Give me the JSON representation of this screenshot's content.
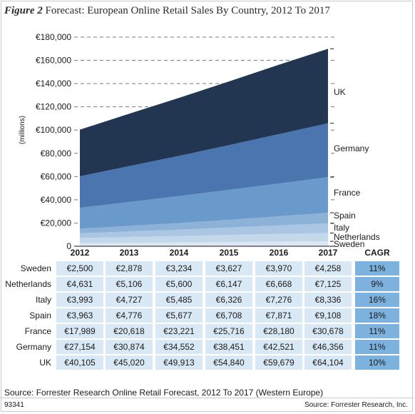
{
  "figure": {
    "label": "Figure 2",
    "title": "Forecast: European Online Retail Sales By Country, 2012 To 2017"
  },
  "chart_data": {
    "type": "area",
    "stacked": true,
    "ylabel": "(millions)",
    "ylim": [
      0,
      180000
    ],
    "yticks": [
      0,
      20000,
      40000,
      60000,
      80000,
      100000,
      120000,
      140000,
      160000,
      180000
    ],
    "ytick_labels": [
      "0",
      "€20,000",
      "€40,000",
      "€60,000",
      "€80,000",
      "€100,000",
      "€120,000",
      "€140,000",
      "€160,000",
      "€180,000"
    ],
    "categories": [
      "2012",
      "2013",
      "2014",
      "2015",
      "2016",
      "2017"
    ],
    "grid": "dashed-horizontal",
    "series": [
      {
        "name": "Sweden",
        "values": [
          2500,
          2878,
          3234,
          3627,
          3970,
          4258
        ],
        "color": "#dbe7f3"
      },
      {
        "name": "Netherlands",
        "values": [
          4631,
          5106,
          5600,
          6147,
          6668,
          7125
        ],
        "color": "#c4d8ec"
      },
      {
        "name": "Italy",
        "values": [
          3993,
          4727,
          5485,
          6326,
          7276,
          8336
        ],
        "color": "#aac6e3"
      },
      {
        "name": "Spain",
        "values": [
          3963,
          4776,
          5677,
          6708,
          7871,
          9108
        ],
        "color": "#8db2d8"
      },
      {
        "name": "France",
        "values": [
          17989,
          20618,
          23221,
          25716,
          28180,
          30678
        ],
        "color": "#6a99cb"
      },
      {
        "name": "Germany",
        "values": [
          27154,
          30874,
          34552,
          38451,
          42521,
          46356
        ],
        "color": "#4a75ae"
      },
      {
        "name": "UK",
        "values": [
          40105,
          45020,
          49913,
          54840,
          59679,
          64104
        ],
        "color": "#223652"
      }
    ],
    "table": {
      "cagr_header": "CAGR",
      "rows": [
        {
          "country": "Sweden",
          "cells": [
            "€2,500",
            "€2,878",
            "€3,234",
            "€3,627",
            "€3,970",
            "€4,258"
          ],
          "cagr": "11%"
        },
        {
          "country": "Netherlands",
          "cells": [
            "€4,631",
            "€5,106",
            "€5,600",
            "€6,147",
            "€6,668",
            "€7,125"
          ],
          "cagr": "9%"
        },
        {
          "country": "Italy",
          "cells": [
            "€3,993",
            "€4,727",
            "€5,485",
            "€6,326",
            "€7,276",
            "€8,336"
          ],
          "cagr": "16%"
        },
        {
          "country": "Spain",
          "cells": [
            "€3,963",
            "€4,776",
            "€5,677",
            "€6,708",
            "€7,871",
            "€9,108"
          ],
          "cagr": "18%"
        },
        {
          "country": "France",
          "cells": [
            "€17,989",
            "€20,618",
            "€23,221",
            "€25,716",
            "€28,180",
            "€30,678"
          ],
          "cagr": "11%"
        },
        {
          "country": "Germany",
          "cells": [
            "€27,154",
            "€30,874",
            "€34,552",
            "€38,451",
            "€42,521",
            "€46,356"
          ],
          "cagr": "11%"
        },
        {
          "country": "UK",
          "cells": [
            "€40,105",
            "€45,020",
            "€49,913",
            "€54,840",
            "€59,679",
            "€64,104"
          ],
          "cagr": "10%"
        }
      ]
    }
  },
  "footer": {
    "source_note": "Source: Forrester Research Online Retail Forecast, 2012 To 2017 (Western Europe)",
    "id": "93341",
    "source_credit": "Source: Forrester Research, Inc."
  }
}
